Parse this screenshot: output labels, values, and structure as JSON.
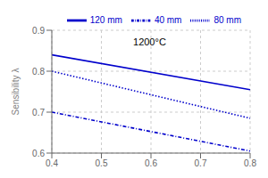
{
  "chart_data": {
    "type": "line",
    "ylabel": "Sensibility λ",
    "x": [
      0.4,
      0.8
    ],
    "series": [
      {
        "name": "120 mm",
        "color": "#0000cc",
        "line_style": "solid",
        "values": [
          0.84,
          0.755
        ]
      },
      {
        "name": "80 mm",
        "color": "#0000cc",
        "line_style": "dotted",
        "values": [
          0.8,
          0.685
        ]
      },
      {
        "name": "40 mm",
        "color": "#0000cc",
        "line_style": "dashdot",
        "values": [
          0.7,
          0.605
        ]
      }
    ],
    "xlim": [
      0.4,
      0.8
    ],
    "ylim": [
      0.6,
      0.9
    ],
    "xticks": [
      0.4,
      0.5,
      0.6,
      0.7,
      0.8
    ],
    "yticks": [
      0.6,
      0.7,
      0.8,
      0.9
    ],
    "annotations": [
      {
        "text": "1200°C",
        "x": 0.555,
        "y": 0.872
      }
    ],
    "grid": true,
    "legend": "upper right"
  }
}
